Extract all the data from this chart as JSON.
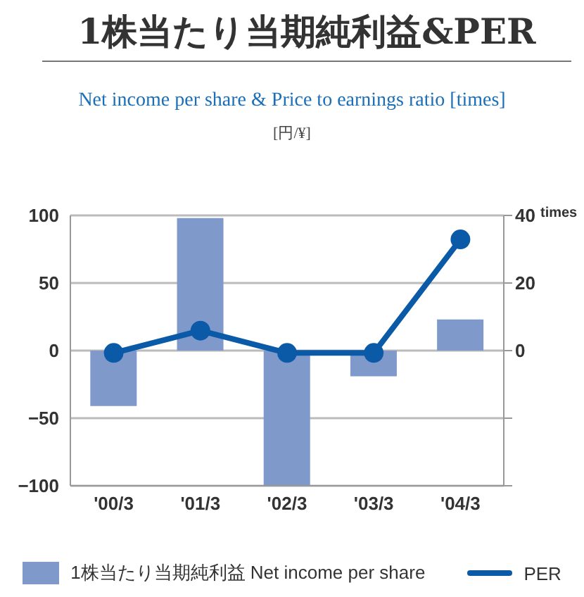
{
  "chart_data": {
    "type": "bar",
    "title": "1株当たり当期純利益&PER",
    "subtitle": "Net income per share & Price to earnings ratio [times]",
    "annotations": [
      "[円/¥]"
    ],
    "y2label": "times",
    "categories": [
      "'00/3",
      "'01/3",
      "'02/3",
      "'03/3",
      "'04/3"
    ],
    "series": [
      {
        "name": "1株当たり当期純利益 Net income per share",
        "color": "#7f99cb",
        "values": [
          -41,
          98,
          -100,
          -19,
          23
        ]
      },
      {
        "name": "PER",
        "type": "line",
        "axis": "y2",
        "color": "#0a5aa8",
        "marker": "circle",
        "values": [
          -0.7,
          5.9,
          -0.7,
          -0.7,
          32.9
        ]
      }
    ],
    "ylim": [
      -100,
      100
    ],
    "yticks": [
      -100,
      -50,
      0,
      50,
      100
    ],
    "y2lim": [
      -40,
      40
    ],
    "y2ticks": [
      {
        "value": -40,
        "label": null
      },
      {
        "value": -20,
        "label": null
      },
      0,
      20,
      40
    ],
    "grid": "y",
    "legend": "bottom"
  }
}
